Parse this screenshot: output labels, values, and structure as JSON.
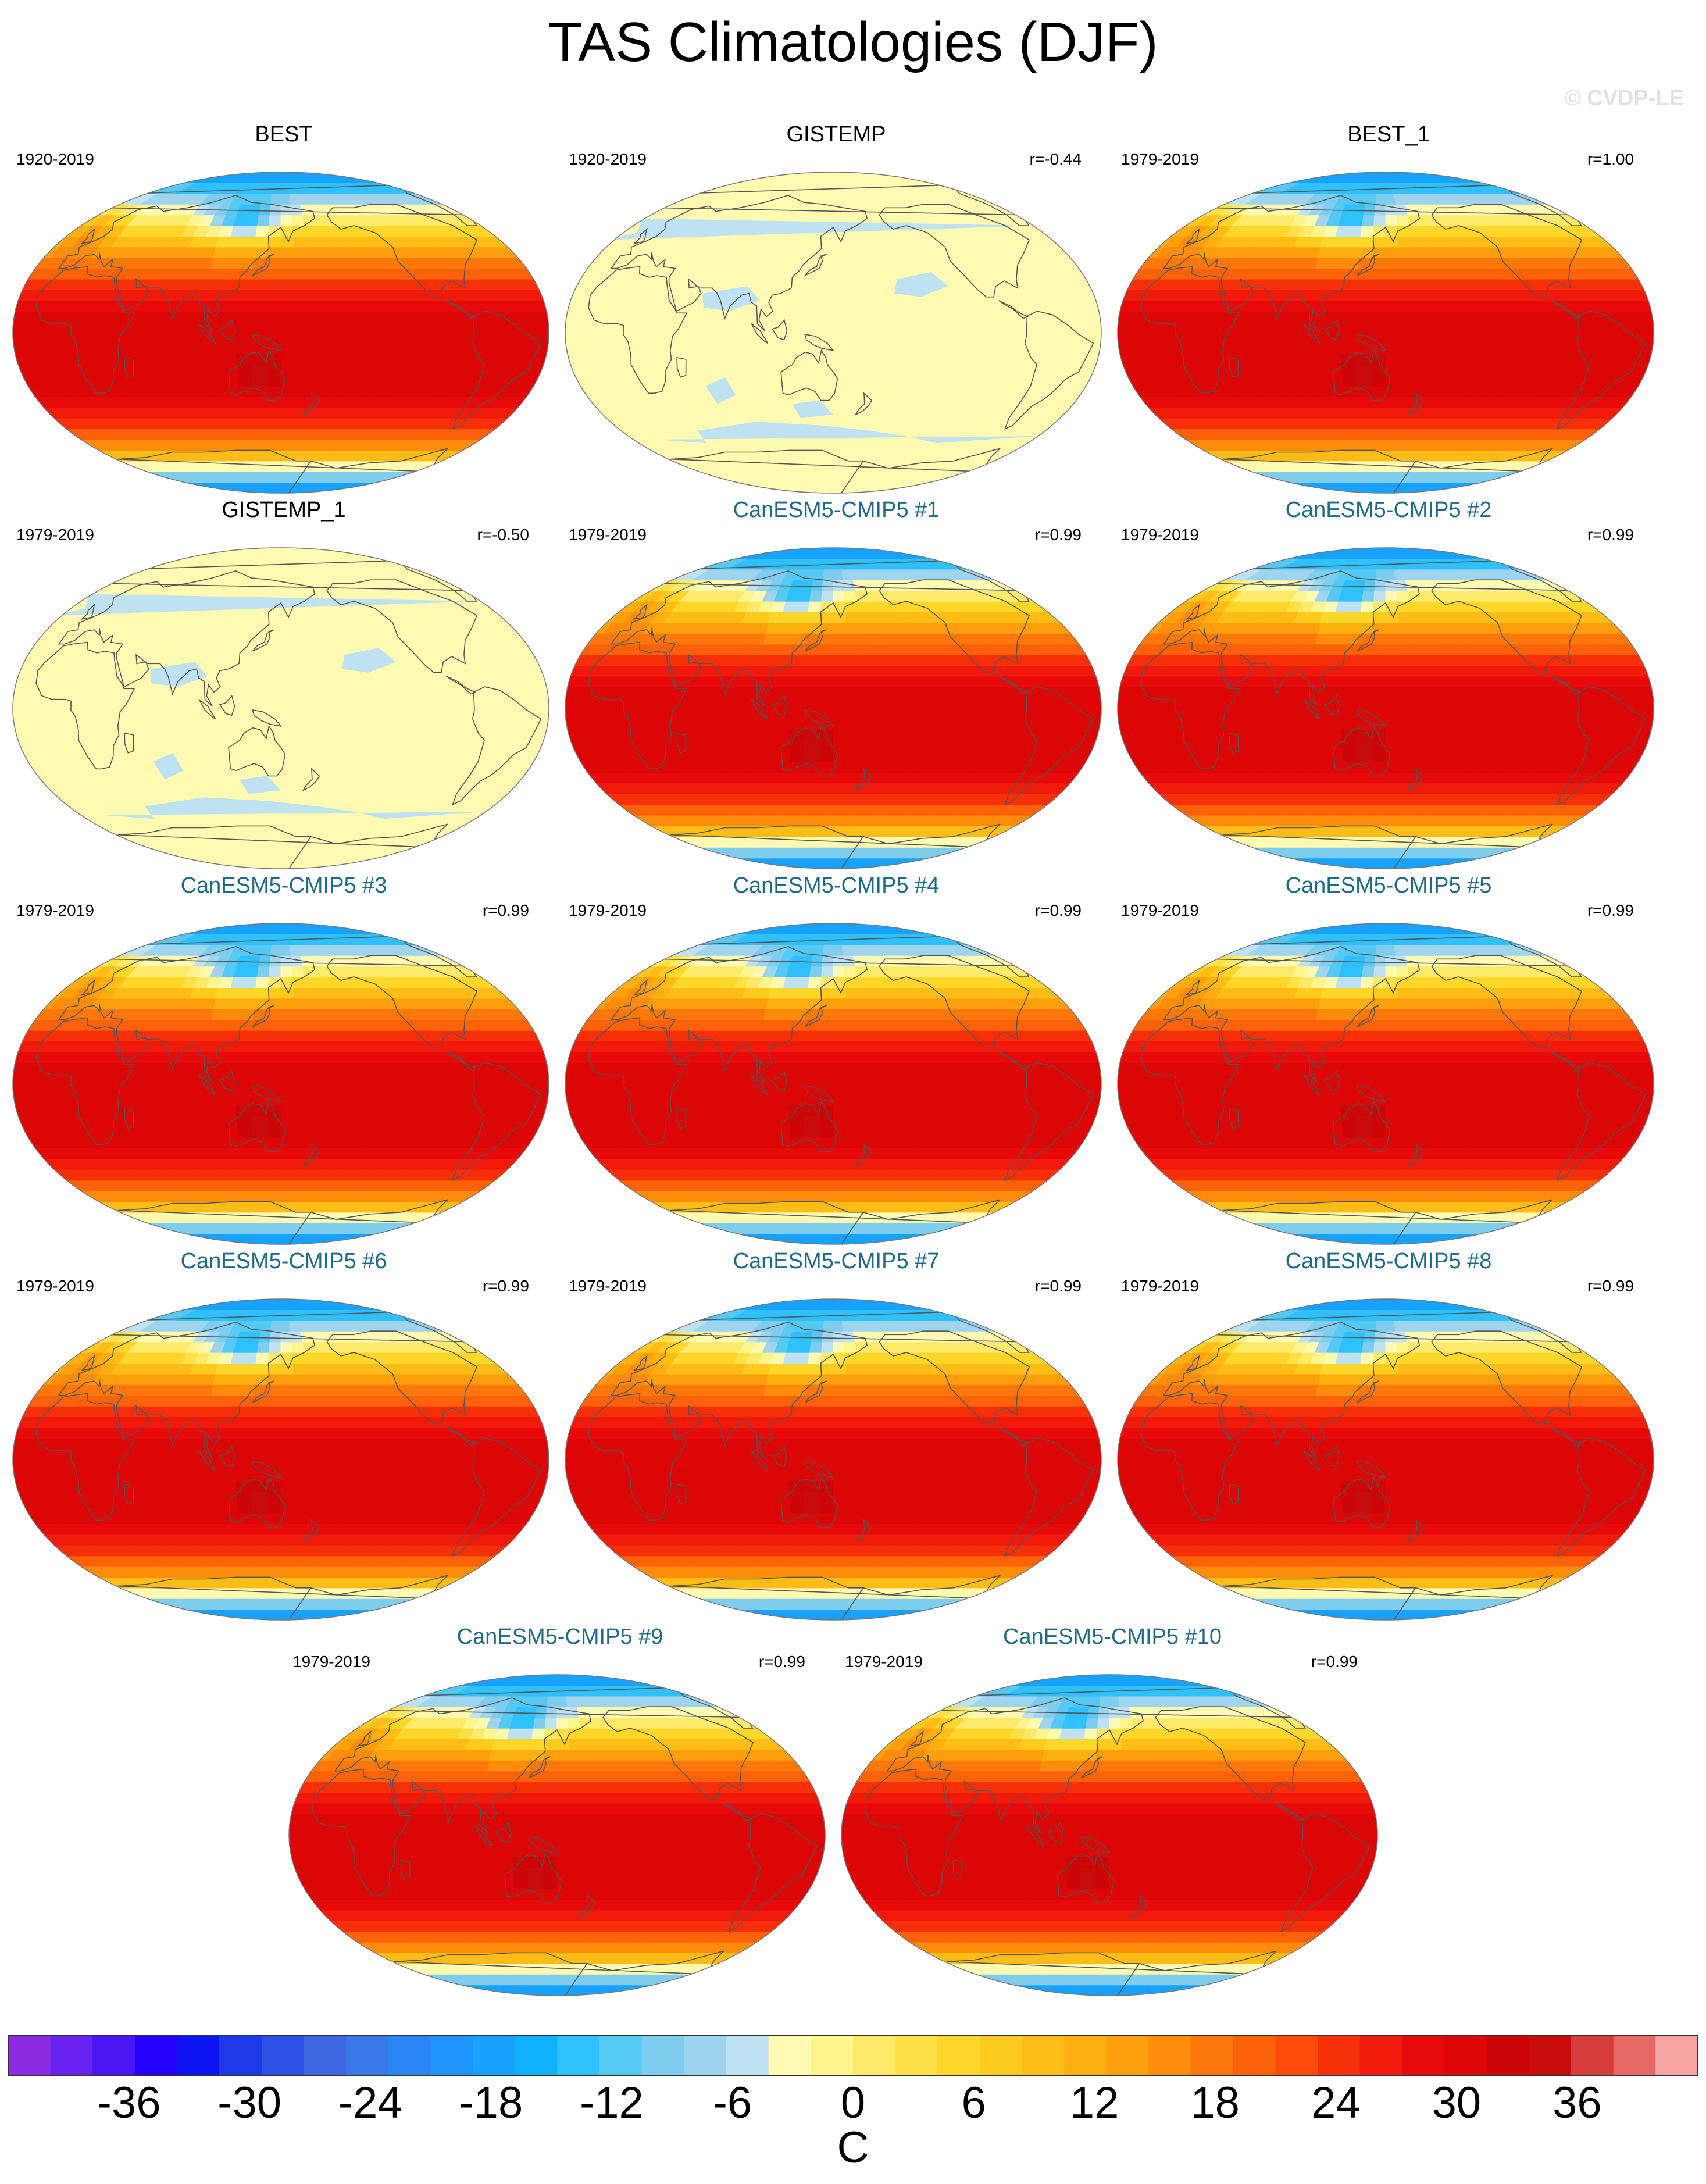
{
  "title": "TAS Climatologies (DJF)",
  "watermark": "© CVDP-LE",
  "colors": {
    "model_title": "#1f6a87",
    "coast": "#555555"
  },
  "panels": [
    {
      "title": "BEST",
      "period": "1920-2019",
      "corr": "",
      "kind": "obs",
      "field": "temp"
    },
    {
      "title": "GISTEMP",
      "period": "1920-2019",
      "corr": "r=-0.44",
      "kind": "obs",
      "field": "anom"
    },
    {
      "title": "BEST_1",
      "period": "1979-2019",
      "corr": "r=1.00",
      "kind": "obs",
      "field": "temp"
    },
    {
      "title": "GISTEMP_1",
      "period": "1979-2019",
      "corr": "r=-0.50",
      "kind": "obs",
      "field": "anom"
    },
    {
      "title": "CanESM5-CMIP5 #1",
      "period": "1979-2019",
      "corr": "r=0.99",
      "kind": "model",
      "field": "temp"
    },
    {
      "title": "CanESM5-CMIP5 #2",
      "period": "1979-2019",
      "corr": "r=0.99",
      "kind": "model",
      "field": "temp"
    },
    {
      "title": "CanESM5-CMIP5 #3",
      "period": "1979-2019",
      "corr": "r=0.99",
      "kind": "model",
      "field": "temp"
    },
    {
      "title": "CanESM5-CMIP5 #4",
      "period": "1979-2019",
      "corr": "r=0.99",
      "kind": "model",
      "field": "temp"
    },
    {
      "title": "CanESM5-CMIP5 #5",
      "period": "1979-2019",
      "corr": "r=0.99",
      "kind": "model",
      "field": "temp"
    },
    {
      "title": "CanESM5-CMIP5 #6",
      "period": "1979-2019",
      "corr": "r=0.99",
      "kind": "model",
      "field": "temp"
    },
    {
      "title": "CanESM5-CMIP5 #7",
      "period": "1979-2019",
      "corr": "r=0.99",
      "kind": "model",
      "field": "temp"
    },
    {
      "title": "CanESM5-CMIP5 #8",
      "period": "1979-2019",
      "corr": "r=0.99",
      "kind": "model",
      "field": "temp"
    },
    {
      "title": "CanESM5-CMIP5 #9",
      "period": "1979-2019",
      "corr": "r=0.99",
      "kind": "model",
      "field": "temp"
    },
    {
      "title": "CanESM5-CMIP5 #10",
      "period": "1979-2019",
      "corr": "r=0.99",
      "kind": "model",
      "field": "temp"
    }
  ],
  "chart_data": {
    "type": "heatmap",
    "title": "TAS Climatologies (DJF)",
    "projection": "robinson (pacific-centred)",
    "colorbar": {
      "unit": "C",
      "tick_labels": [
        "-36",
        "-30",
        "-24",
        "-18",
        "-12",
        "-6",
        "0",
        "6",
        "12",
        "18",
        "24",
        "30",
        "36"
      ],
      "tick_values": [
        -36,
        -30,
        -24,
        -18,
        -12,
        -6,
        0,
        6,
        12,
        18,
        24,
        30,
        36
      ],
      "range": [
        -42,
        42
      ],
      "interval": 2,
      "colors": [
        "#8a2be2",
        "#6a22f0",
        "#4a16f6",
        "#2400fa",
        "#0c14f2",
        "#1e3ae8",
        "#2e50e4",
        "#3c66e2",
        "#3a78ea",
        "#2a86f4",
        "#1e94fc",
        "#17a2ff",
        "#10b2ff",
        "#2ec0ff",
        "#56c8f4",
        "#7ecdef",
        "#9ed4ee",
        "#bfe2f2",
        "#fefab2",
        "#fff58e",
        "#feea6a",
        "#fde046",
        "#fdd62a",
        "#fdcb1e",
        "#fdbd16",
        "#fdae10",
        "#fd9e0c",
        "#fd8c0a",
        "#fd780a",
        "#fc620a",
        "#fb4a0a",
        "#f8300a",
        "#f21a0a",
        "#e80a0a",
        "#dc0606",
        "#cc0606",
        "#c80c0c",
        "#d63c3c",
        "#e86868",
        "#f6a4a4"
      ]
    },
    "series": [
      {
        "name": "BEST",
        "period": "1920-2019",
        "pattern_correlation": null
      },
      {
        "name": "GISTEMP",
        "period": "1920-2019",
        "pattern_correlation": -0.44
      },
      {
        "name": "BEST_1",
        "period": "1979-2019",
        "pattern_correlation": 1.0
      },
      {
        "name": "GISTEMP_1",
        "period": "1979-2019",
        "pattern_correlation": -0.5
      },
      {
        "name": "CanESM5-CMIP5 #1",
        "period": "1979-2019",
        "pattern_correlation": 0.99
      },
      {
        "name": "CanESM5-CMIP5 #2",
        "period": "1979-2019",
        "pattern_correlation": 0.99
      },
      {
        "name": "CanESM5-CMIP5 #3",
        "period": "1979-2019",
        "pattern_correlation": 0.99
      },
      {
        "name": "CanESM5-CMIP5 #4",
        "period": "1979-2019",
        "pattern_correlation": 0.99
      },
      {
        "name": "CanESM5-CMIP5 #5",
        "period": "1979-2019",
        "pattern_correlation": 0.99
      },
      {
        "name": "CanESM5-CMIP5 #6",
        "period": "1979-2019",
        "pattern_correlation": 0.99
      },
      {
        "name": "CanESM5-CMIP5 #7",
        "period": "1979-2019",
        "pattern_correlation": 0.99
      },
      {
        "name": "CanESM5-CMIP5 #8",
        "period": "1979-2019",
        "pattern_correlation": 0.99
      },
      {
        "name": "CanESM5-CMIP5 #9",
        "period": "1979-2019",
        "pattern_correlation": 0.99
      },
      {
        "name": "CanESM5-CMIP5 #10",
        "period": "1979-2019",
        "pattern_correlation": 0.99
      }
    ]
  }
}
